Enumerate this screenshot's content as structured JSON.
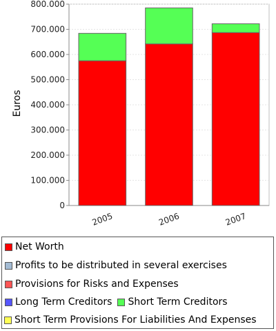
{
  "chart_data": {
    "type": "bar",
    "stacked": true,
    "categories": [
      "2005",
      "2006",
      "2007"
    ],
    "ylabel": "Euros",
    "ylim": [
      0,
      800000
    ],
    "y_ticks": [
      "0",
      "100.000",
      "200.000",
      "300.000",
      "400.000",
      "500.000",
      "600.000",
      "700.000",
      "800.000"
    ],
    "grid": true,
    "legend_position": "bottom",
    "series": [
      {
        "name": "Net Worth",
        "color": "#ff0000",
        "values": [
          575000,
          642000,
          687000
        ]
      },
      {
        "name": "Profits to be distributed in several exercises",
        "color": "#a3bbd3",
        "values": [
          0,
          0,
          0
        ]
      },
      {
        "name": "Provisions for Risks and Expenses",
        "color": "#ff5555",
        "values": [
          0,
          0,
          0
        ]
      },
      {
        "name": "Long Term Creditors",
        "color": "#5555ff",
        "values": [
          0,
          0,
          0
        ]
      },
      {
        "name": "Short Term Creditors",
        "color": "#55ff55",
        "values": [
          109000,
          143000,
          35000
        ]
      },
      {
        "name": "Short Term Provisions For Liabilities And Expenses",
        "color": "#ffff55",
        "values": [
          0,
          0,
          0
        ]
      }
    ]
  }
}
